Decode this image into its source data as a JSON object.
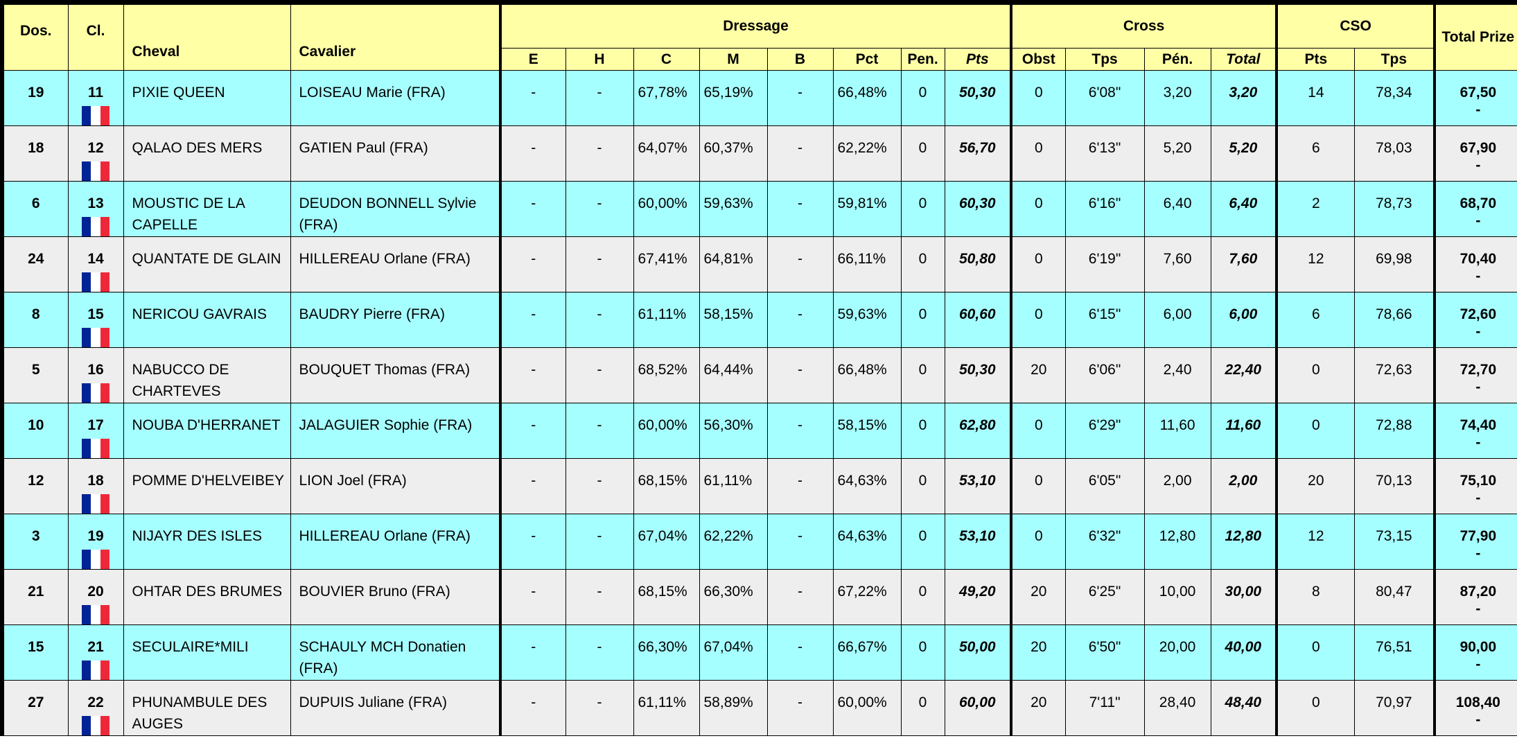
{
  "header": {
    "groups": [
      "Dressage",
      "Cross",
      "CSO"
    ],
    "columns": [
      "Dos.",
      "Cl.",
      "Cheval",
      "Cavalier",
      "E",
      "H",
      "C",
      "M",
      "B",
      "Pct",
      "Pen.",
      "Pts",
      "Obst",
      "Tps",
      "Pén.",
      "Total",
      "Pts",
      "Tps",
      "Total Prize"
    ]
  },
  "table": {
    "rows": [
      {
        "cells": [
          "19",
          "11",
          "PIXIE QUEEN",
          "LOISEAU Marie (FRA)",
          "-",
          "-",
          "67,78%",
          "65,19%",
          "-",
          "66,48%",
          "0",
          "50,30",
          "0",
          "6'08\"",
          "3,20",
          "3,20",
          "14",
          "78,34",
          "67,50"
        ],
        "note": "-"
      },
      {
        "cells": [
          "18",
          "12",
          "QALAO DES MERS",
          "GATIEN Paul (FRA)",
          "-",
          "-",
          "64,07%",
          "60,37%",
          "-",
          "62,22%",
          "0",
          "56,70",
          "0",
          "6'13\"",
          "5,20",
          "5,20",
          "6",
          "78,03",
          "67,90"
        ],
        "note": "-"
      },
      {
        "cells": [
          "6",
          "13",
          "MOUSTIC DE LA CAPELLE",
          "DEUDON BONNELL Sylvie (FRA)",
          "-",
          "-",
          "60,00%",
          "59,63%",
          "-",
          "59,81%",
          "0",
          "60,30",
          "0",
          "6'16\"",
          "6,40",
          "6,40",
          "2",
          "78,73",
          "68,70"
        ],
        "note": "-"
      },
      {
        "cells": [
          "24",
          "14",
          "QUANTATE DE GLAIN",
          "HILLEREAU Orlane (FRA)",
          "-",
          "-",
          "67,41%",
          "64,81%",
          "-",
          "66,11%",
          "0",
          "50,80",
          "0",
          "6'19\"",
          "7,60",
          "7,60",
          "12",
          "69,98",
          "70,40"
        ],
        "note": "-"
      },
      {
        "cells": [
          "8",
          "15",
          "NERICOU GAVRAIS",
          "BAUDRY Pierre (FRA)",
          "-",
          "-",
          "61,11%",
          "58,15%",
          "-",
          "59,63%",
          "0",
          "60,60",
          "0",
          "6'15\"",
          "6,00",
          "6,00",
          "6",
          "78,66",
          "72,60"
        ],
        "note": "-"
      },
      {
        "cells": [
          "5",
          "16",
          "NABUCCO DE CHARTEVES",
          "BOUQUET Thomas (FRA)",
          "-",
          "-",
          "68,52%",
          "64,44%",
          "-",
          "66,48%",
          "0",
          "50,30",
          "20",
          "6'06\"",
          "2,40",
          "22,40",
          "0",
          "72,63",
          "72,70"
        ],
        "note": "-"
      },
      {
        "cells": [
          "10",
          "17",
          "NOUBA D'HERRANET",
          "JALAGUIER Sophie (FRA)",
          "-",
          "-",
          "60,00%",
          "56,30%",
          "-",
          "58,15%",
          "0",
          "62,80",
          "0",
          "6'29\"",
          "11,60",
          "11,60",
          "0",
          "72,88",
          "74,40"
        ],
        "note": "-"
      },
      {
        "cells": [
          "12",
          "18",
          "POMME D'HELVEIBEY",
          "LION Joel (FRA)",
          "-",
          "-",
          "68,15%",
          "61,11%",
          "-",
          "64,63%",
          "0",
          "53,10",
          "0",
          "6'05\"",
          "2,00",
          "2,00",
          "20",
          "70,13",
          "75,10"
        ],
        "note": "-"
      },
      {
        "cells": [
          "3",
          "19",
          "NIJAYR DES ISLES",
          "HILLEREAU Orlane (FRA)",
          "-",
          "-",
          "67,04%",
          "62,22%",
          "-",
          "64,63%",
          "0",
          "53,10",
          "0",
          "6'32\"",
          "12,80",
          "12,80",
          "12",
          "73,15",
          "77,90"
        ],
        "note": "-"
      },
      {
        "cells": [
          "21",
          "20",
          "OHTAR DES BRUMES",
          "BOUVIER Bruno (FRA)",
          "-",
          "-",
          "68,15%",
          "66,30%",
          "-",
          "67,22%",
          "0",
          "49,20",
          "20",
          "6'25\"",
          "10,00",
          "30,00",
          "8",
          "80,47",
          "87,20"
        ],
        "note": "-"
      },
      {
        "cells": [
          "15",
          "21",
          "SECULAIRE*MILI",
          "SCHAULY MCH Donatien (FRA)",
          "-",
          "-",
          "66,30%",
          "67,04%",
          "-",
          "66,67%",
          "0",
          "50,00",
          "20",
          "6'50\"",
          "20,00",
          "40,00",
          "0",
          "76,51",
          "90,00"
        ],
        "note": "-"
      },
      {
        "cells": [
          "27",
          "22",
          "PHUNAMBULE DES AUGES",
          "DUPUIS Juliane (FRA)",
          "-",
          "-",
          "61,11%",
          "58,89%",
          "-",
          "60,00%",
          "0",
          "60,00",
          "20",
          "7'11\"",
          "28,40",
          "48,40",
          "0",
          "70,97",
          "108,40"
        ],
        "note": "-"
      }
    ]
  }
}
